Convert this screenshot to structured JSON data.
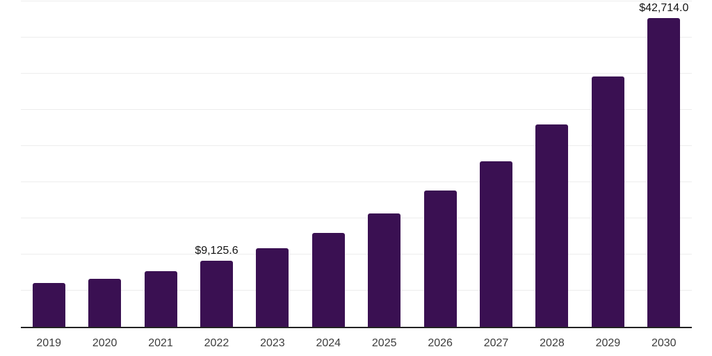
{
  "chart_data": {
    "type": "bar",
    "title": "",
    "xlabel": "",
    "ylabel": "",
    "categories": [
      "2019",
      "2020",
      "2021",
      "2022",
      "2023",
      "2024",
      "2025",
      "2026",
      "2027",
      "2028",
      "2029",
      "2030"
    ],
    "values": [
      6100,
      6630,
      7740,
      9125.6,
      10860,
      12970,
      15660,
      18840,
      22870,
      28010,
      34600,
      42714.0
    ],
    "labeled_points": [
      {
        "category": "2022",
        "value": 9125.6,
        "label": "$9,125.6"
      },
      {
        "category": "2030",
        "value": 42714.0,
        "label": "$42,714.0"
      }
    ],
    "ylim": [
      0,
      45000
    ],
    "gridline_interval": 5000,
    "grid": "horizontal",
    "y_axis_tick_labels": "none",
    "legend_position": "none"
  },
  "colors": {
    "bar": "#3a1052",
    "gridline": "#ededed",
    "axis_line": "#222222",
    "x_tick_label": "#3c3c3c",
    "data_label": "#141414",
    "background": "#ffffff"
  }
}
